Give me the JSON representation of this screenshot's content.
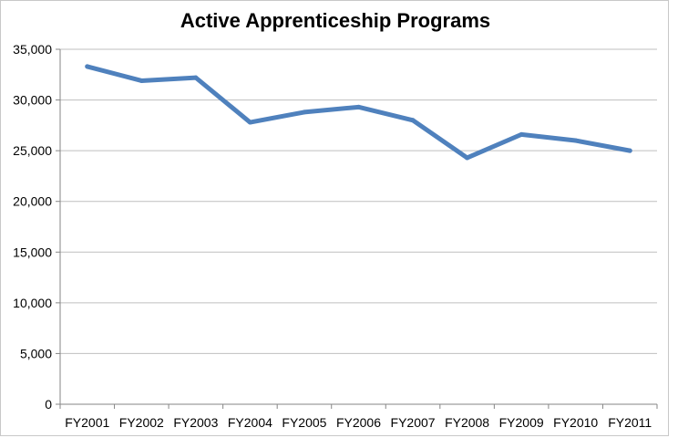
{
  "chart_data": {
    "type": "line",
    "title": "Active Apprenticeship Programs",
    "xlabel": "",
    "ylabel": "",
    "categories": [
      "FY2001",
      "FY2002",
      "FY2003",
      "FY2004",
      "FY2005",
      "FY2006",
      "FY2007",
      "FY2008",
      "FY2009",
      "FY2010",
      "FY2011"
    ],
    "series": [
      {
        "values": [
          33300,
          31900,
          32200,
          27800,
          28800,
          29300,
          28000,
          24300,
          26600,
          26000,
          25000
        ],
        "color": "#4f81bd"
      }
    ],
    "ylim": [
      0,
      35000
    ],
    "yticks": [
      0,
      5000,
      10000,
      15000,
      20000,
      25000,
      30000,
      35000
    ],
    "ytick_labels": [
      "0",
      "5,000",
      "10,000",
      "15,000",
      "20,000",
      "25,000",
      "30,000",
      "35,000"
    ],
    "grid": true,
    "legend": "none"
  }
}
